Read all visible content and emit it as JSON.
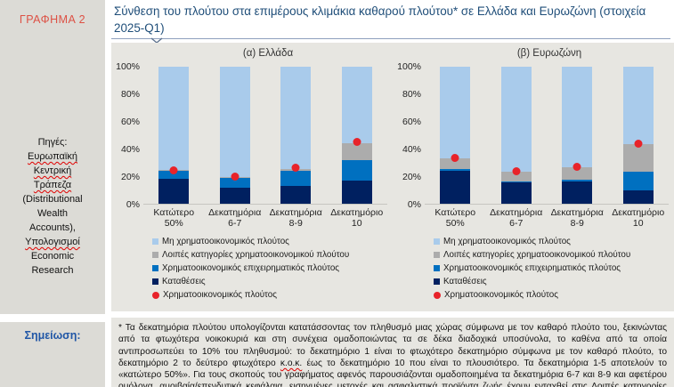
{
  "figure_label": "ΓΡΑΦΗΜΑ 2",
  "title": "Σύνθεση του πλούτου στα επιμέρους κλιμάκια καθαρού πλούτου* σε Ελλάδα και Ευρωζώνη (στοιχεία 2025-Q1)",
  "sources": {
    "lines": [
      {
        "t": "Πηγές:",
        "wavy": false
      },
      {
        "t": "Ευρωπαϊκή",
        "wavy": true
      },
      {
        "t": "Κεντρική",
        "wavy": true
      },
      {
        "t": "Τράπεζα",
        "wavy": true
      },
      {
        "t": "(Distributional",
        "wavy": false
      },
      {
        "t": "Wealth",
        "wavy": false
      },
      {
        "t": "Accounts),",
        "wavy": false
      },
      {
        "t": "Υπολογισμοί",
        "wavy": true
      },
      {
        "t": "Economic",
        "wavy": false
      },
      {
        "t": "Research",
        "wavy": false
      }
    ]
  },
  "note": {
    "label": "Σημείωση:",
    "segments": [
      {
        "t": "* Τα δεκατημόρια πλούτου υπολογίζονται κατατάσσοντας τον πληθυσμό μιας χώρας σύμφωνα με τον καθαρό πλούτο του, ξεκινώντας από τα φτωχότερα νοικοκυριά και στη συνέχεια ομαδοποιώντας τα σε δέκα διαδοχικά υποσύνολα, το καθένα από τα οποία αντιπροσωπεύει το 10% του πληθυσμού: το δεκατημόριο 1 είναι το φτωχότερο δεκατημόριο σύμφωνα με τον καθαρό πλούτο, το δεκατημόριο 2 το δεύτερο φτωχότερο ",
        "wavy": false
      },
      {
        "t": "κ.ο.κ.",
        "wavy": true
      },
      {
        "t": " έως το δεκατημόριο 10 που είναι το πλουσιότερο. Τα δεκατημόρια 1-5 αποτελούν το «κατώτερο 50%». Για τους σκοπούς του γραφήματος αφενός παρουσιάζονται ομαδοποιημένα τα δεκατημόρια 6-7 και 8-9 και αφετέρου ομόλογα, αμοιβαία/επενδυτικά κεφάλαια, εισηγμένες μετοχές και ασφαλιστικά προϊόντα ζωής έχουν ενταχθεί στις Λοιπές κατηγορίες χρηματοοικονομικού πλούτου.",
        "wavy": false
      }
    ]
  },
  "colors": {
    "deposits": "#002060",
    "business_wealth": "#0070C0",
    "other_financial": "#ACACAC",
    "non_financial": "#A9CBEB",
    "financial_marker": "#E8232A",
    "title_text": "#1F4E79",
    "figure_label_text": "#DD5145",
    "note_label_text": "#2056A6"
  },
  "chart_data": [
    {
      "type": "bar",
      "stacked": true,
      "title": "(α) Ελλάδα",
      "categories": [
        [
          "Κατώτερο",
          "50%"
        ],
        [
          "Δεκατημόρια",
          "6-7"
        ],
        [
          "Δεκατημόρια",
          "8-9"
        ],
        [
          "Δεκατημόριο",
          "10"
        ]
      ],
      "ylim": [
        0,
        100
      ],
      "yticks": [
        {
          "v": 100,
          "label": "100%"
        },
        {
          "v": 80,
          "label": "80%"
        },
        {
          "v": 60,
          "label": "60%"
        },
        {
          "v": 40,
          "label": "40%"
        },
        {
          "v": 20,
          "label": "20%"
        },
        {
          "v": 0,
          "label": "0%"
        }
      ],
      "series": [
        {
          "name": "Καταθέσεις",
          "color": "#002060",
          "values": [
            18,
            12,
            13,
            17
          ]
        },
        {
          "name": "Χρηματοοικονομικός επιχειρηματικός πλούτος",
          "color": "#0070C0",
          "values": [
            6,
            7,
            11,
            15
          ]
        },
        {
          "name": "Λοιπές κατηγορίες χρηματοοικονομικού πλούτου",
          "color": "#ACACAC",
          "values": [
            0.5,
            0.5,
            1.5,
            12
          ]
        },
        {
          "name": "Μη χρηματοοικονομικός πλούτος",
          "color": "#A9CBEB",
          "values": [
            75.5,
            80.5,
            74.5,
            56
          ]
        }
      ],
      "marker_series": {
        "name": "Χρηματοοικονομικός πλούτος",
        "color": "#E8232A",
        "values": [
          24.5,
          19.5,
          26,
          45
        ]
      },
      "legend": [
        {
          "label": "Μη χρηματοοικονομικός πλούτος",
          "color": "#A9CBEB",
          "shape": "square"
        },
        {
          "label": "Λοιπές κατηγορίες χρηματοοικονομικού πλούτου",
          "color": "#ACACAC",
          "shape": "square"
        },
        {
          "label": "Χρηματοοικονομικός επιχειρηματικός πλούτος",
          "color": "#0070C0",
          "shape": "square"
        },
        {
          "label": "Καταθέσεις",
          "color": "#002060",
          "shape": "square"
        },
        {
          "label": "Χρηματοοικονομικός πλούτος",
          "color": "#E8232A",
          "shape": "circle"
        }
      ]
    },
    {
      "type": "bar",
      "stacked": true,
      "title": "(β) Ευρωζώνη",
      "categories": [
        [
          "Κατώτερο",
          "50%"
        ],
        [
          "Δεκατημόρια",
          "6-7"
        ],
        [
          "Δεκατημόρια",
          "8-9"
        ],
        [
          "Δεκατημόριο",
          "10"
        ]
      ],
      "ylim": [
        0,
        100
      ],
      "yticks": [
        {
          "v": 100,
          "label": "100%"
        },
        {
          "v": 80,
          "label": "80%"
        },
        {
          "v": 60,
          "label": "60%"
        },
        {
          "v": 40,
          "label": "40%"
        },
        {
          "v": 20,
          "label": "20%"
        },
        {
          "v": 0,
          "label": "0%"
        }
      ],
      "series": [
        {
          "name": "Καταθέσεις",
          "color": "#002060",
          "values": [
            24,
            15.5,
            16,
            9.5
          ]
        },
        {
          "name": "Χρηματοοικονομικός επιχειρηματικός πλούτος",
          "color": "#0070C0",
          "values": [
            1.5,
            1,
            1.5,
            14
          ]
        },
        {
          "name": "Λοιπές κατηγορίες χρηματοοικονομικού πλούτου",
          "color": "#ACACAC",
          "values": [
            7.5,
            7,
            9,
            20
          ]
        },
        {
          "name": "Μη χρηματοοικονομικός πλούτος",
          "color": "#A9CBEB",
          "values": [
            67,
            76.5,
            73.5,
            56.5
          ]
        }
      ],
      "marker_series": {
        "name": "Χρηματοοικονομικός πλούτος",
        "color": "#E8232A",
        "values": [
          33.5,
          23.5,
          27,
          44
        ]
      },
      "legend": [
        {
          "label": "Μη χρηματοοικονομικός πλούτος",
          "color": "#A9CBEB",
          "shape": "square"
        },
        {
          "label": "Λοιπές κατηγορίες χρηματοοικονομικού πλούτου",
          "color": "#ACACAC",
          "shape": "square"
        },
        {
          "label": "Χρηματοοικονομικός επιχειρηματικός πλούτος",
          "color": "#0070C0",
          "shape": "square"
        },
        {
          "label": "Καταθέσεις",
          "color": "#002060",
          "shape": "square"
        },
        {
          "label": "Χρηματοοικονομικός πλούτος",
          "color": "#E8232A",
          "shape": "circle"
        }
      ]
    }
  ]
}
